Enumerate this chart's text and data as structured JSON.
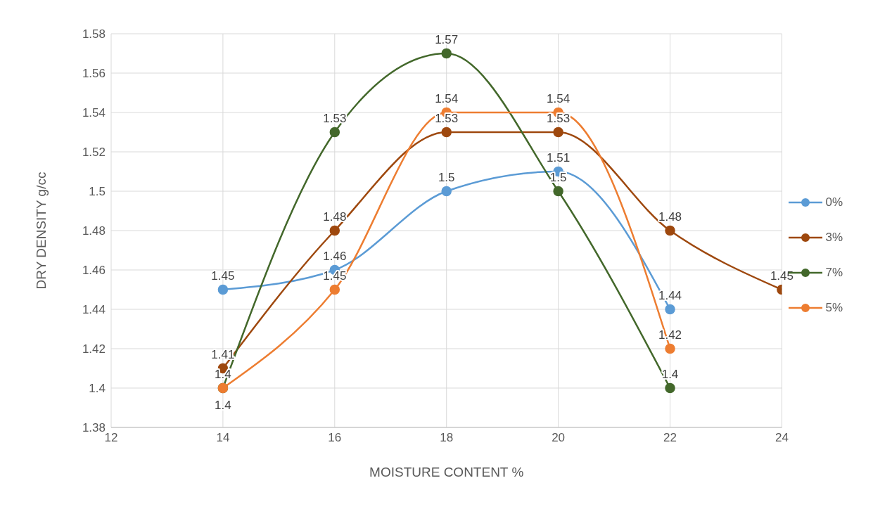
{
  "chart_data": {
    "type": "line",
    "xlabel": "MOISTURE CONTENT %",
    "ylabel": "DRY DENSITY g/cc",
    "xlim": [
      12,
      24
    ],
    "xticks": [
      12,
      14,
      16,
      18,
      20,
      22,
      24
    ],
    "ylim": [
      1.38,
      1.58
    ],
    "yticks": [
      1.38,
      1.4,
      1.42,
      1.44,
      1.46,
      1.48,
      1.5,
      1.52,
      1.54,
      1.56,
      1.58
    ],
    "grid": true,
    "legend": "right",
    "marker": "circle",
    "line_style": "solid",
    "data_labels": true,
    "series": [
      {
        "name": "0%",
        "color": "#5b9bd5",
        "x": [
          14,
          16,
          18,
          20,
          22
        ],
        "values": [
          1.45,
          1.46,
          1.5,
          1.51,
          1.44
        ]
      },
      {
        "name": "3%",
        "color": "#9e480e",
        "x": [
          14,
          16,
          18,
          20,
          22,
          24
        ],
        "values": [
          1.41,
          1.48,
          1.53,
          1.53,
          1.48,
          1.45
        ]
      },
      {
        "name": "7%",
        "color": "#43682b",
        "x": [
          14,
          16,
          18,
          20,
          22
        ],
        "values": [
          1.4,
          1.53,
          1.57,
          1.5,
          1.4
        ]
      },
      {
        "name": "5%",
        "color": "#ed7d31",
        "x": [
          14,
          16,
          18,
          20,
          22
        ],
        "values": [
          1.4,
          1.45,
          1.54,
          1.54,
          1.42
        ]
      }
    ]
  }
}
